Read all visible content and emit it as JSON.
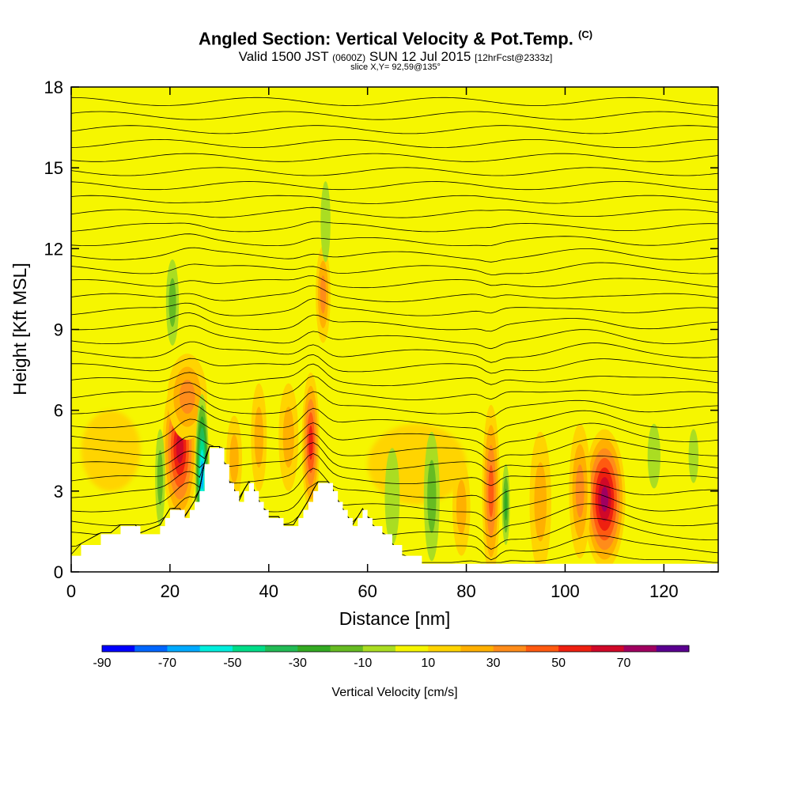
{
  "chart_data": {
    "type": "heatmap",
    "title": "Angled Section: Vertical Velocity & Pot.Temp.",
    "title_mark": "(C)",
    "subtitle_main": "Valid 1500 JST",
    "subtitle_zulu": "(0600Z)",
    "subtitle_date": "SUN 12 Jul 2015",
    "subtitle_fcst": "[12hrFcst@2333z]",
    "slice_label": "slice X,Y= 92,59@135°",
    "xlabel": "Distance [nm]",
    "ylabel": "Height [Kft MSL]",
    "xlim": [
      0,
      131
    ],
    "ylim": [
      0,
      18
    ],
    "x_ticks": [
      0,
      20,
      40,
      60,
      80,
      100,
      120
    ],
    "y_ticks": [
      0,
      3,
      6,
      9,
      12,
      15,
      18
    ],
    "colorbar": {
      "label": "Vertical Velocity [cm/s]",
      "tick_labels": [
        "-90",
        "-70",
        "-50",
        "-30",
        "-10",
        "10",
        "30",
        "50",
        "70"
      ],
      "bins": [
        -90,
        -80,
        -70,
        -60,
        -50,
        -40,
        -30,
        -20,
        -10,
        0,
        10,
        20,
        30,
        40,
        50,
        60,
        70,
        80
      ],
      "colors": [
        "#0000ff",
        "#0066ff",
        "#00aaff",
        "#00eedd",
        "#00dd88",
        "#22bb55",
        "#33aa22",
        "#66bb22",
        "#aadd22",
        "#f6f600",
        "#ffd400",
        "#ffb000",
        "#ff8c1a",
        "#ff5a10",
        "#ee2010",
        "#d00828",
        "#a00060",
        "#5a0090"
      ]
    },
    "terrain_kft": [
      [
        0,
        0.6
      ],
      [
        2,
        1.0
      ],
      [
        6,
        1.4
      ],
      [
        8,
        1.4
      ],
      [
        10,
        1.7
      ],
      [
        12,
        1.7
      ],
      [
        13,
        1.7
      ],
      [
        14,
        1.4
      ],
      [
        18,
        1.7
      ],
      [
        19,
        2.0
      ],
      [
        20,
        2.3
      ],
      [
        22,
        2.3
      ],
      [
        23,
        2.0
      ],
      [
        24,
        2.3
      ],
      [
        25,
        2.6
      ],
      [
        26,
        3.0
      ],
      [
        27,
        4.0
      ],
      [
        28,
        4.6
      ],
      [
        30,
        4.6
      ],
      [
        31,
        4.0
      ],
      [
        32,
        3.3
      ],
      [
        33,
        3.0
      ],
      [
        34,
        2.6
      ],
      [
        35,
        3.0
      ],
      [
        36,
        3.3
      ],
      [
        37,
        3.0
      ],
      [
        38,
        2.6
      ],
      [
        39,
        2.3
      ],
      [
        40,
        2.0
      ],
      [
        42,
        2.0
      ],
      [
        43,
        1.7
      ],
      [
        45,
        1.7
      ],
      [
        46,
        2.0
      ],
      [
        47,
        2.3
      ],
      [
        48,
        2.6
      ],
      [
        49,
        3.0
      ],
      [
        50,
        3.3
      ],
      [
        52,
        3.3
      ],
      [
        53,
        3.0
      ],
      [
        54,
        2.6
      ],
      [
        55,
        2.3
      ],
      [
        56,
        2.0
      ],
      [
        57,
        1.7
      ],
      [
        58,
        2.0
      ],
      [
        59,
        2.3
      ],
      [
        60,
        2.0
      ],
      [
        61,
        1.7
      ],
      [
        63,
        1.4
      ],
      [
        65,
        1.0
      ],
      [
        67,
        0.6
      ],
      [
        71,
        0.3
      ],
      [
        131,
        0.3
      ]
    ],
    "updrafts": [
      {
        "x": 22,
        "z": 4.6,
        "value": 65
      },
      {
        "x": 48.5,
        "z": 4.6,
        "value": 55
      },
      {
        "x": 85,
        "z": 3.0,
        "value": 45
      },
      {
        "x": 108,
        "z": 2.6,
        "value": 75
      }
    ],
    "downdrafts": [
      {
        "x": 26.5,
        "z": 3.5,
        "value": -75
      },
      {
        "x": 20.5,
        "z": 10.0,
        "value": -20
      },
      {
        "x": 73,
        "z": 2.8,
        "value": -25
      },
      {
        "x": 88,
        "z": 2.5,
        "value": -30
      }
    ],
    "isentropes_label": "Pot.Temp."
  }
}
